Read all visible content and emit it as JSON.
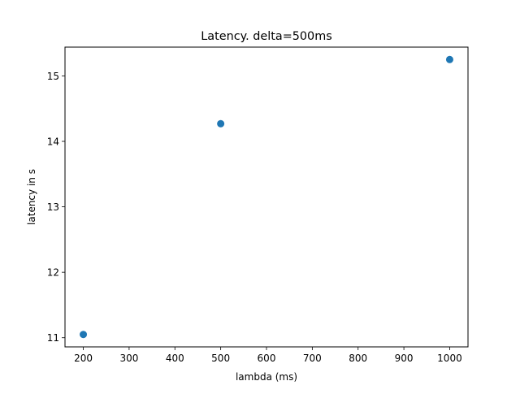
{
  "chart_data": {
    "type": "scatter",
    "title": "Latency. delta=500ms",
    "xlabel": "lambda (ms)",
    "ylabel": "latency in s",
    "x": [
      200,
      500,
      1000
    ],
    "y": [
      11.05,
      14.27,
      15.25
    ],
    "xlim": [
      160,
      1040
    ],
    "ylim": [
      10.86,
      15.44
    ],
    "xticks": [
      200,
      300,
      400,
      500,
      600,
      700,
      800,
      900,
      1000
    ],
    "yticks": [
      11,
      12,
      13,
      14,
      15
    ],
    "grid": false,
    "marker_color": "#1f77b4"
  }
}
